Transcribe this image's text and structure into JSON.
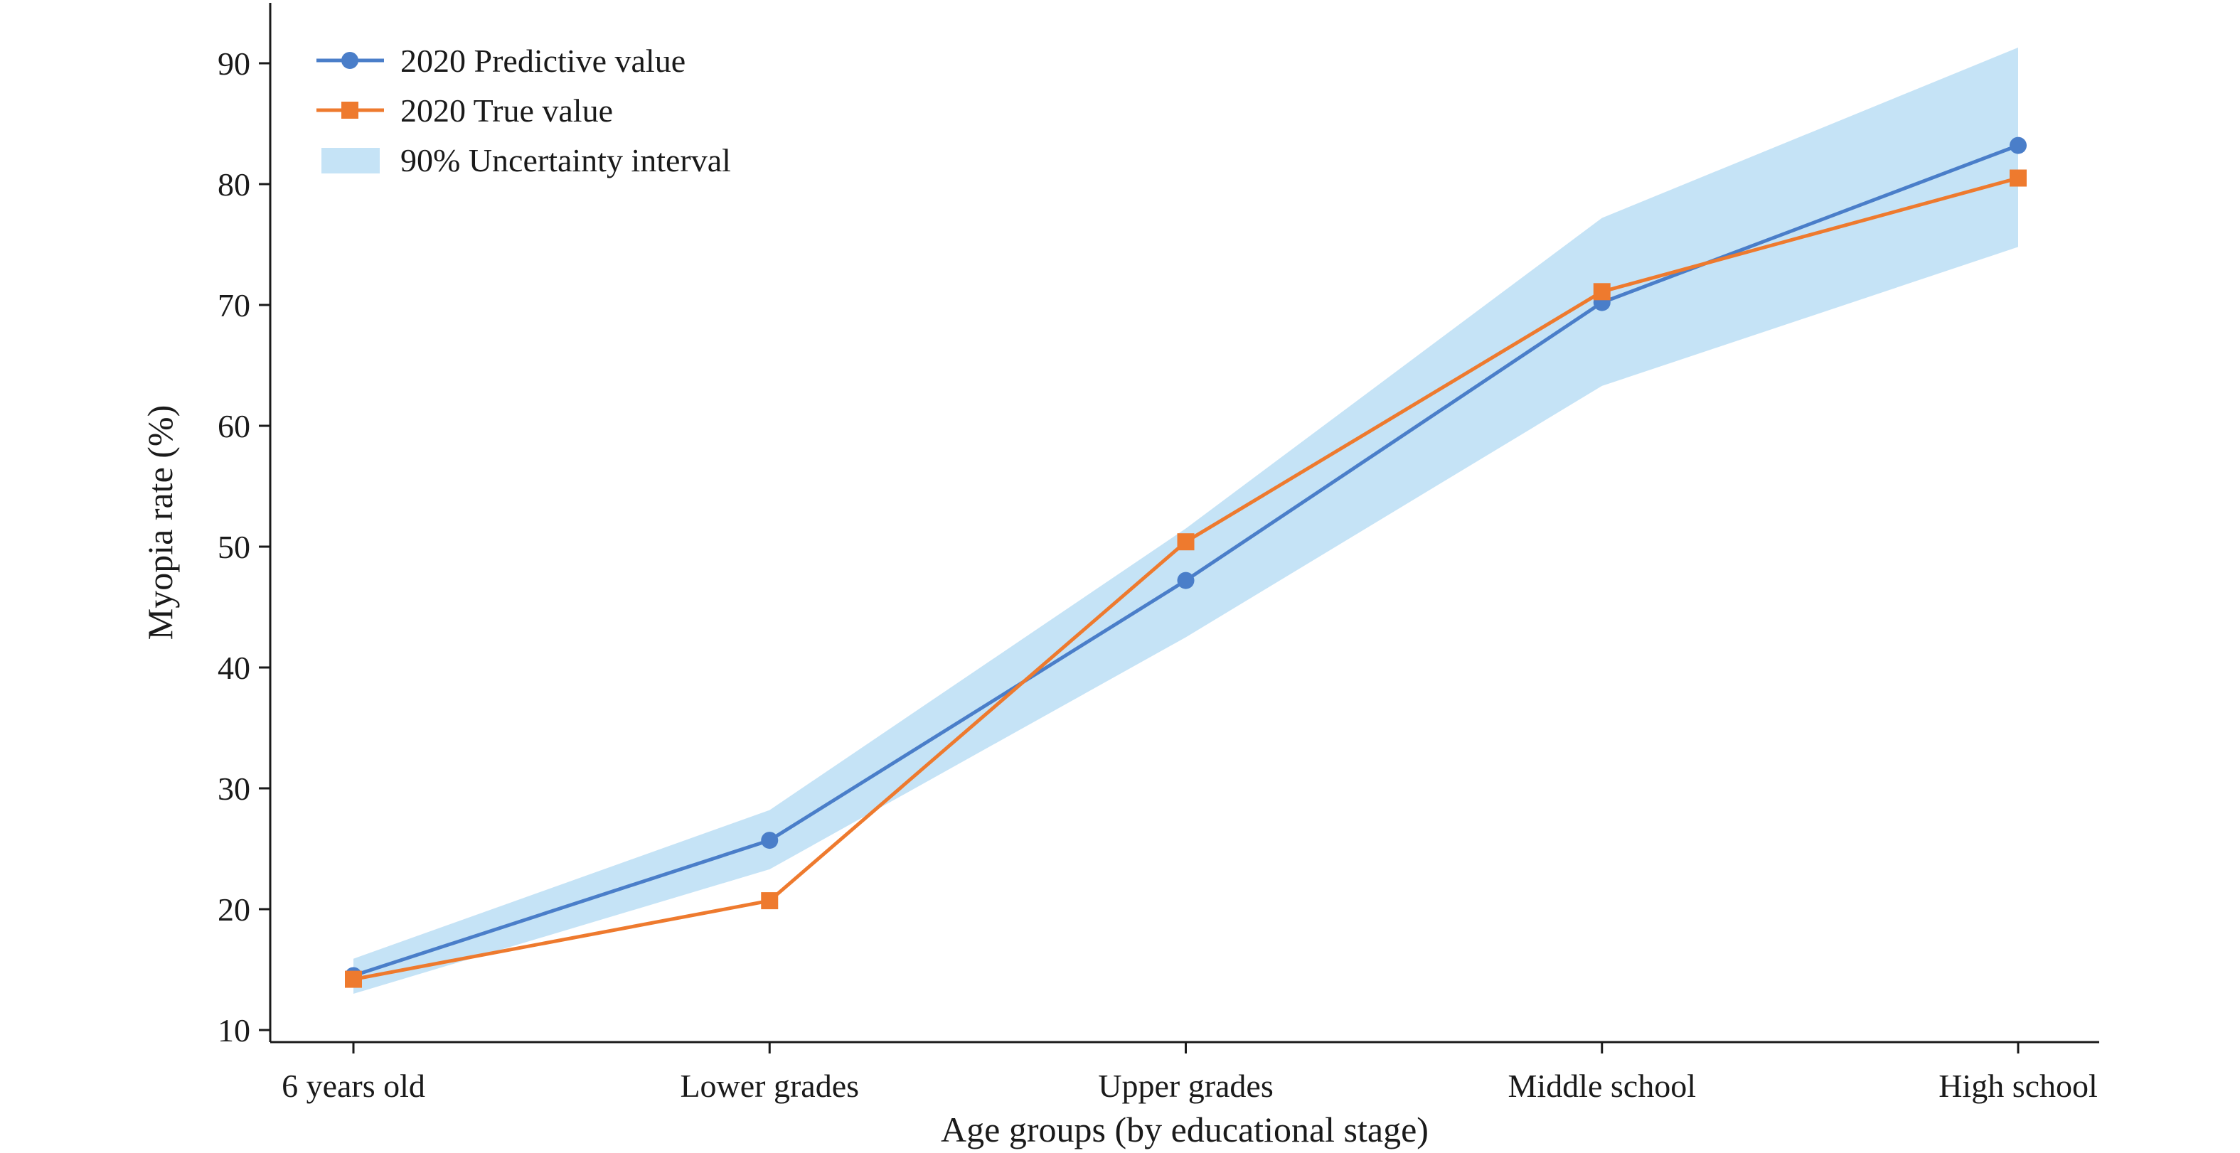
{
  "chart_data": {
    "type": "line",
    "title": "",
    "xlabel": "Age groups (by educational stage)",
    "ylabel": "Myopia rate (%)",
    "categories": [
      "6 years old",
      "Lower grades",
      "Upper grades",
      "Middle school",
      "High school"
    ],
    "ylim": [
      9,
      95
    ],
    "yticks": [
      10,
      20,
      30,
      40,
      50,
      60,
      70,
      80,
      90
    ],
    "grid": false,
    "legend_position": "top-left",
    "series": [
      {
        "name": "2020 Predictive value",
        "values": [
          14.5,
          25.7,
          47.2,
          70.2,
          83.2
        ],
        "color": "#4a7ec9",
        "marker": "circle"
      },
      {
        "name": "2020 True value",
        "values": [
          14.2,
          20.7,
          50.4,
          71.1,
          80.5
        ],
        "color": "#ee7a2e",
        "marker": "square"
      }
    ],
    "interval": {
      "name": "90% Uncertainty interval",
      "lower": [
        13.0,
        23.3,
        42.5,
        63.3,
        74.8
      ],
      "upper": [
        15.9,
        28.2,
        51.5,
        77.2,
        91.3
      ],
      "color": "#c5e3f6"
    }
  }
}
